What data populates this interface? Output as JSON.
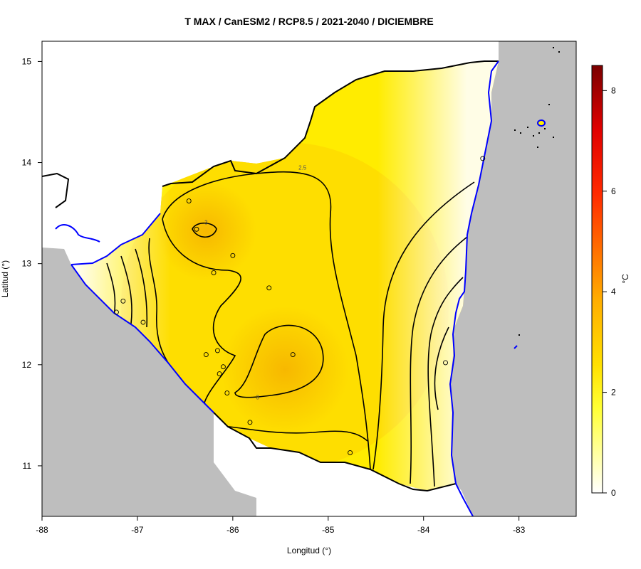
{
  "chart_data": {
    "type": "heatmap",
    "title": "T MAX / CanESM2 / RCP8.5 / 2021-2040 / DICIEMBRE",
    "xlabel": "Longitud (°)",
    "ylabel": "Latitud (°)",
    "colorbar_label": "°C",
    "xlim": [
      -88,
      -82.4
    ],
    "ylim": [
      10.5,
      15.2
    ],
    "x_ticks": [
      -88,
      -87,
      -86,
      -85,
      -84,
      -83
    ],
    "x_tick_labels": [
      "-88",
      "-87",
      "-86",
      "-85",
      "-84",
      "-83"
    ],
    "y_ticks": [
      11,
      12,
      13,
      14,
      15
    ],
    "y_tick_labels": [
      "11",
      "12",
      "13",
      "14",
      "15"
    ],
    "colorbar_range": [
      0,
      8.5
    ],
    "colorbar_ticks": [
      0,
      2,
      4,
      6,
      8
    ],
    "colorbar_tick_labels": [
      "0",
      "2",
      "4",
      "6",
      "8"
    ],
    "contour_labels": [
      {
        "text": "2.5",
        "lon": -85.27,
        "lat": 13.95
      },
      {
        "text": "3",
        "lon": -86.28,
        "lat": 13.41
      },
      {
        "text": "3",
        "lon": -85.74,
        "lat": 11.68
      }
    ],
    "stations": [
      {
        "lon": -86.46,
        "lat": 13.62
      },
      {
        "lon": -86.38,
        "lat": 13.34
      },
      {
        "lon": -86.0,
        "lat": 13.08
      },
      {
        "lon": -86.2,
        "lat": 12.91
      },
      {
        "lon": -85.62,
        "lat": 12.76
      },
      {
        "lon": -87.15,
        "lat": 12.63
      },
      {
        "lon": -86.94,
        "lat": 12.42
      },
      {
        "lon": -87.22,
        "lat": 12.52
      },
      {
        "lon": -86.28,
        "lat": 12.1
      },
      {
        "lon": -86.16,
        "lat": 12.14
      },
      {
        "lon": -85.37,
        "lat": 12.1
      },
      {
        "lon": -86.1,
        "lat": 11.98
      },
      {
        "lon": -86.14,
        "lat": 11.91
      },
      {
        "lon": -86.06,
        "lat": 11.72
      },
      {
        "lon": -85.82,
        "lat": 11.43
      },
      {
        "lon": -84.77,
        "lat": 11.13
      },
      {
        "lon": -83.77,
        "lat": 12.02
      },
      {
        "lon": -83.38,
        "lat": 14.04
      }
    ],
    "colors": {
      "ocean": "#bebebe",
      "coastline": "#0000ff",
      "border": "#000000",
      "high": "#f2b600",
      "mid": "#ffe800",
      "low": "#ffffff",
      "colorbar": [
        "#ffffff",
        "#ffff00",
        "#ffcc00",
        "#ff9900",
        "#ff0000",
        "#8b0000"
      ]
    },
    "grid": false,
    "legend": "right colorbar"
  }
}
